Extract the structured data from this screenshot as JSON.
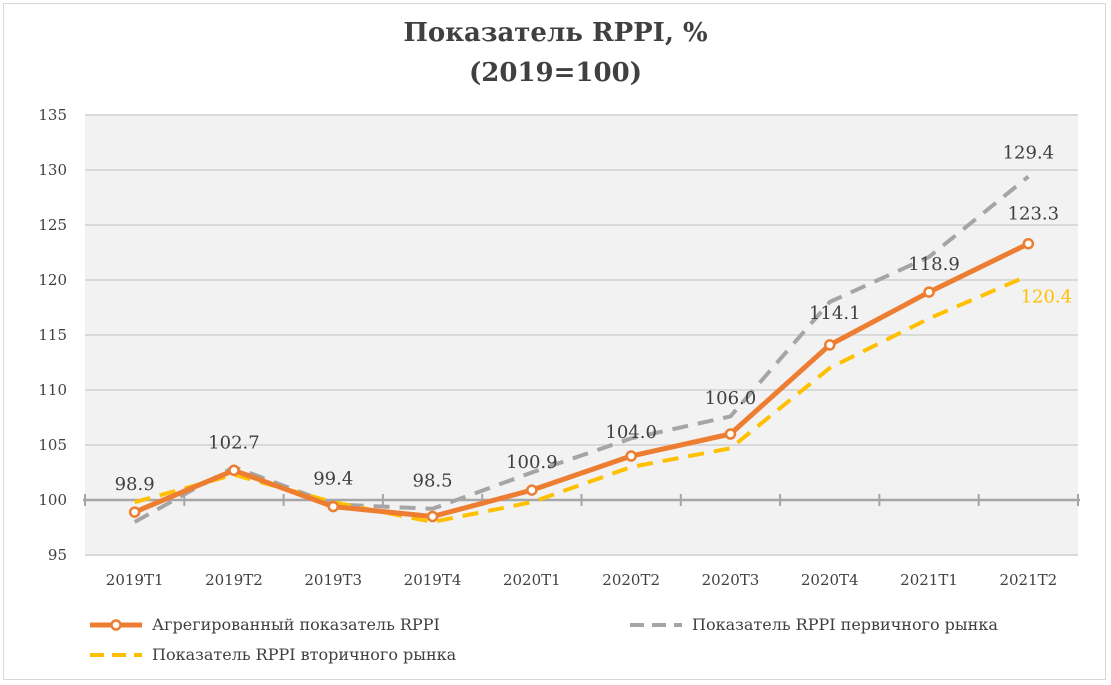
{
  "chart_data": {
    "type": "line",
    "title": "Показатель RPPI, %",
    "subtitle": "(2019=100)",
    "xlabel": "",
    "ylabel": "",
    "ylim": [
      95,
      135
    ],
    "yticks": [
      "95",
      "100",
      "105",
      "110",
      "115",
      "120",
      "125",
      "130",
      "135"
    ],
    "grid": true,
    "legend_position": "bottom",
    "categories": [
      "2019T1",
      "2019T2",
      "2019T3",
      "2019T4",
      "2020T1",
      "2020T2",
      "2020T3",
      "2020T4",
      "2021T1",
      "2021T2"
    ],
    "series": [
      {
        "name": "Агрегированный показатель RPPI",
        "color": "#ED7D31",
        "style": "solid-marker",
        "values": [
          98.9,
          102.7,
          99.4,
          98.5,
          100.9,
          104.0,
          106.0,
          114.1,
          118.9,
          123.3
        ],
        "labels": [
          "98.9",
          "102.7",
          "99.4",
          "98.5",
          "100.9",
          "104.0",
          "106.0",
          "114.1",
          "118.9",
          "123.3"
        ]
      },
      {
        "name": "Показатель RPPI первичного рынка",
        "color": "#A5A5A5",
        "style": "dashed",
        "values": [
          98.0,
          103.0,
          99.6,
          99.2,
          102.5,
          105.6,
          107.6,
          118.0,
          122.1,
          129.4
        ],
        "labels": [
          "",
          "",
          "",
          "",
          "",
          "",
          "",
          "",
          "",
          "129.4"
        ]
      },
      {
        "name": "Показатель RPPI вторичного рынка",
        "color": "#FFC000",
        "style": "dashed",
        "values": [
          99.8,
          102.3,
          99.8,
          98.0,
          99.8,
          103.0,
          104.7,
          112.0,
          116.5,
          120.4
        ],
        "labels": [
          "",
          "",
          "",
          "",
          "",
          "",
          "",
          "",
          "",
          "120.4"
        ]
      }
    ]
  }
}
